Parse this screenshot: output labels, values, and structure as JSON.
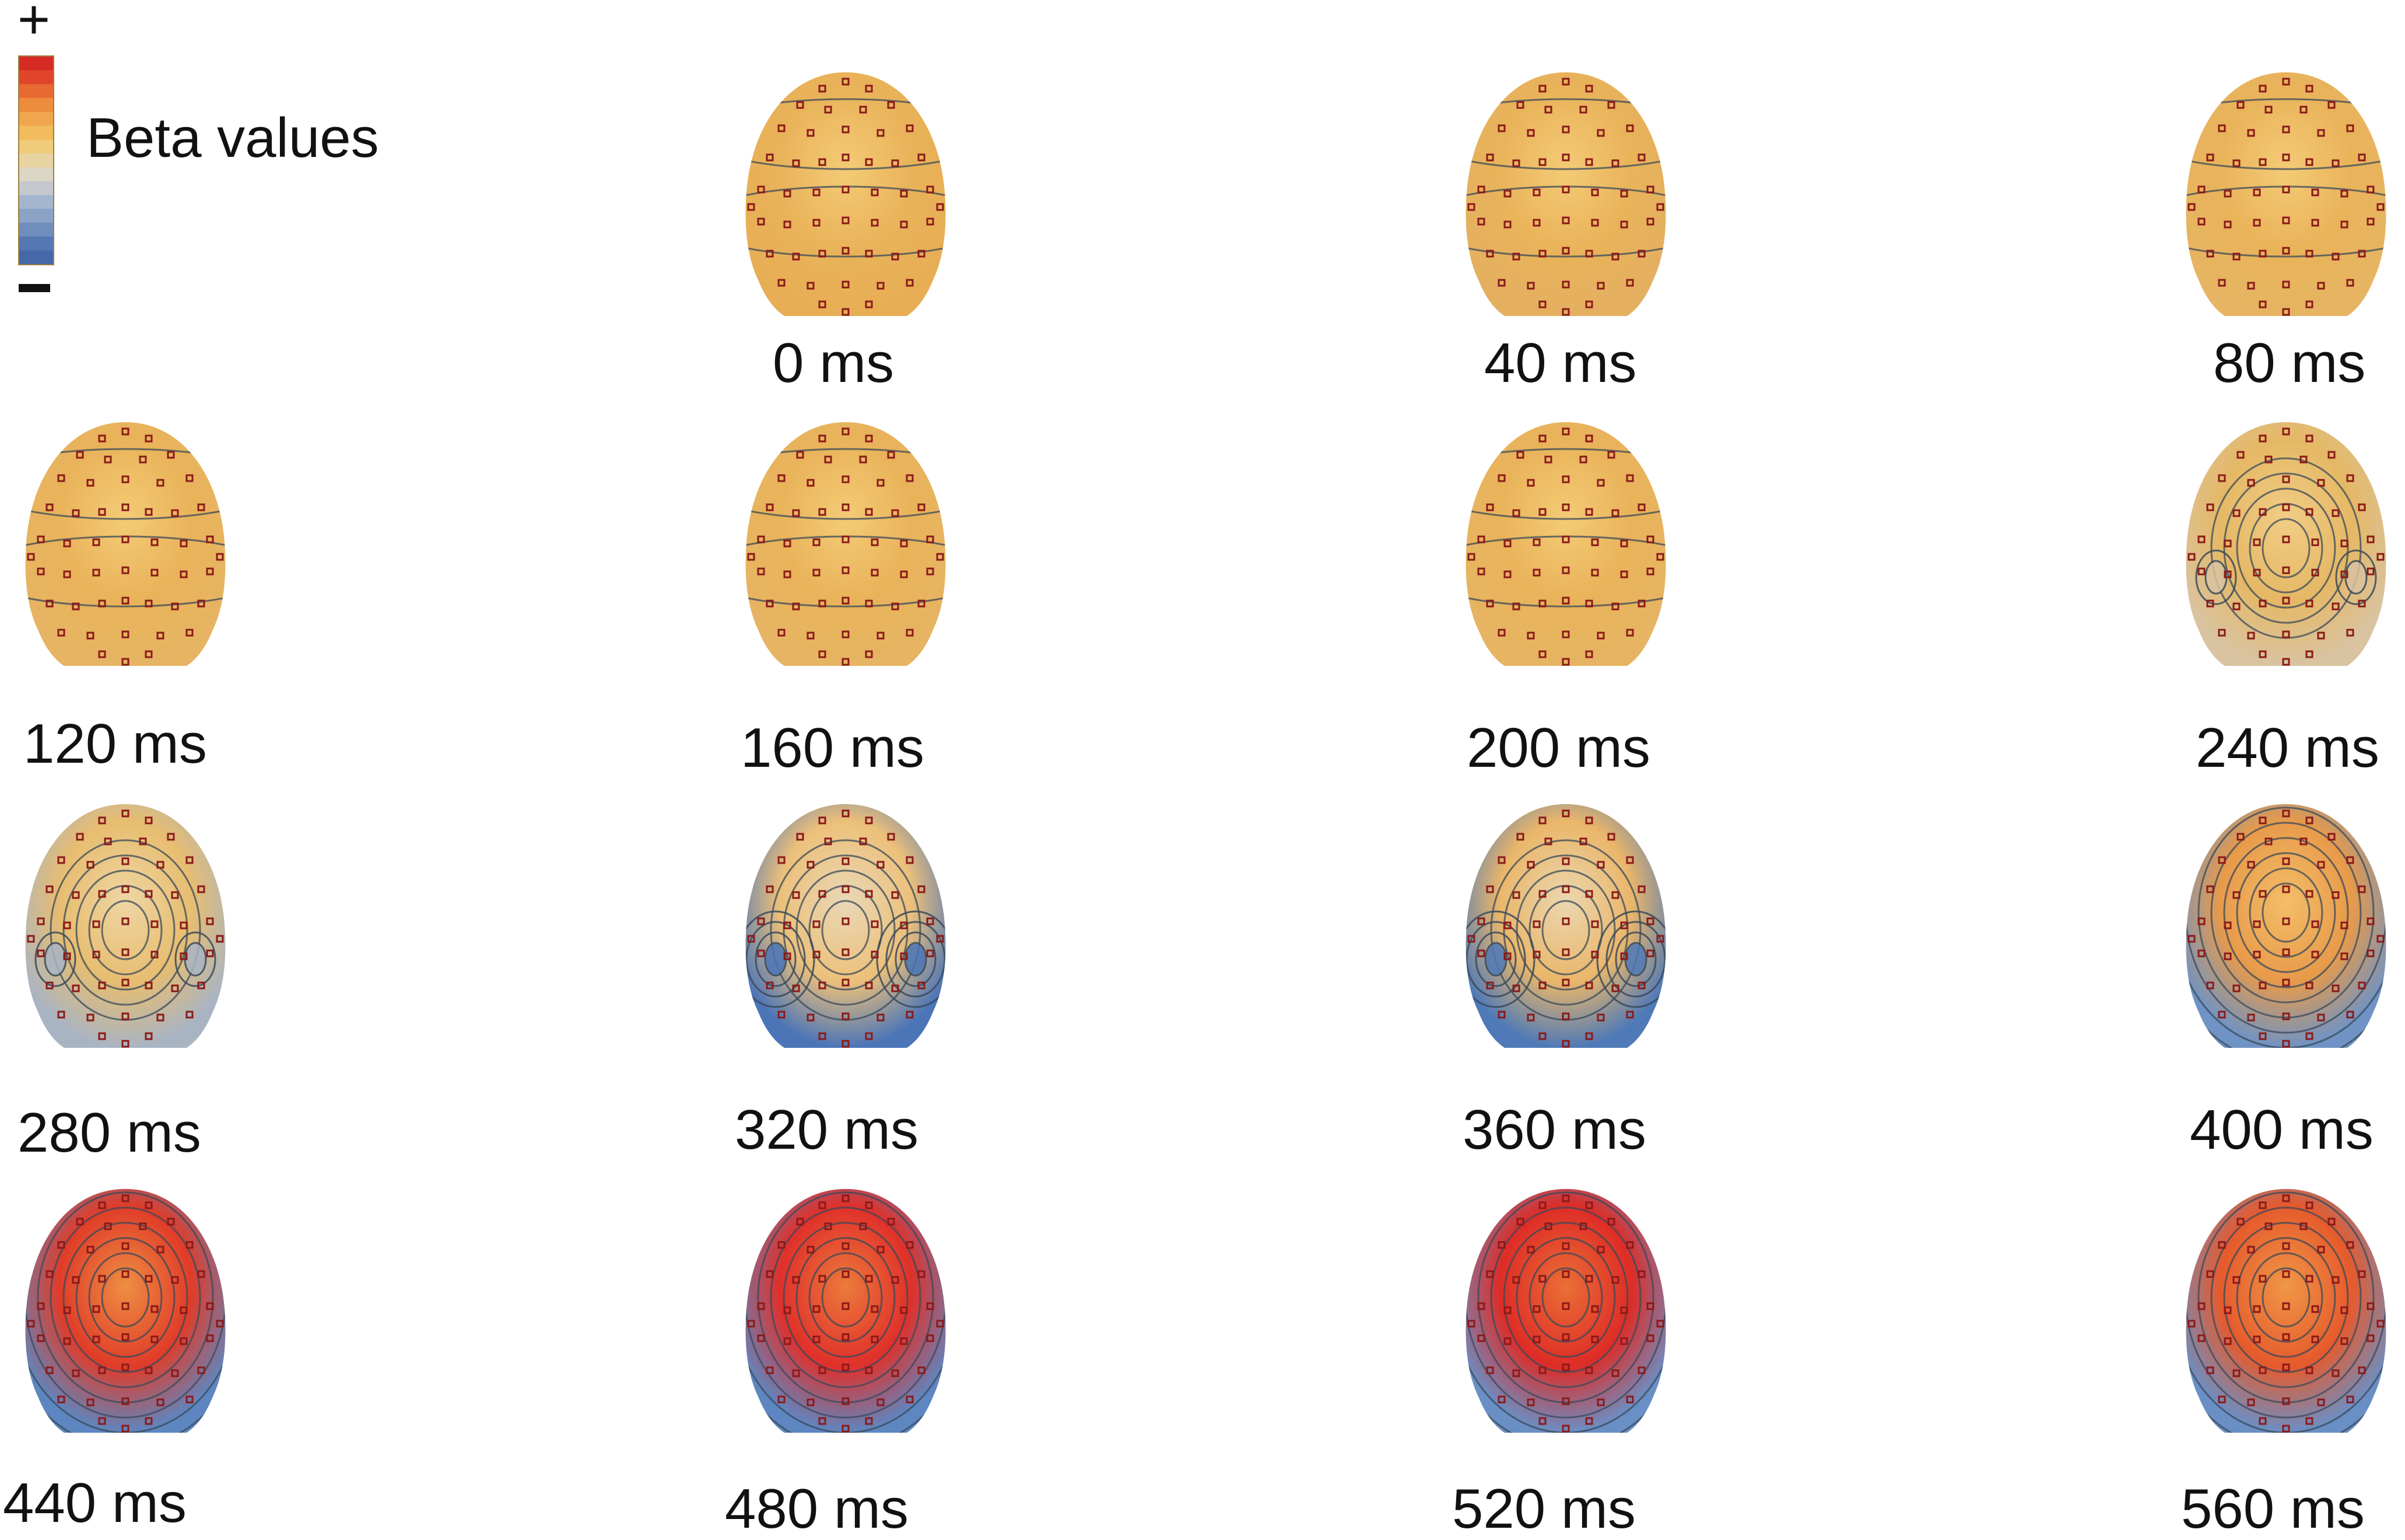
{
  "legend": {
    "plus": "+",
    "minus": "−",
    "label": "Beta values",
    "colors": [
      "#d62a25",
      "#e0452c",
      "#e86a33",
      "#ee8c3e",
      "#f0a64c",
      "#f1bb5e",
      "#f0cb7a",
      "#e8d4a0",
      "#dcd6c4",
      "#c5c9cf",
      "#a4b6cf",
      "#8aa3c7",
      "#6f8ebd",
      "#5577b2",
      "#4668a8"
    ]
  },
  "electrode_color": "#8b1a1a",
  "contour_color": "#3a4a5a",
  "maps": [
    {
      "label": "0 ms",
      "palette": [
        "#e9b35a",
        "#f4cb76",
        "#e7ae55"
      ]
    },
    {
      "label": "40 ms",
      "palette": [
        "#e9b35a",
        "#f4cb76",
        "#e4b060"
      ]
    },
    {
      "label": "80 ms",
      "palette": [
        "#e9b35a",
        "#f4cb76",
        "#e6b462"
      ]
    },
    {
      "label": "120 ms",
      "palette": [
        "#e9b35a",
        "#f4cb76",
        "#e6b462"
      ]
    },
    {
      "label": "160 ms",
      "palette": [
        "#e9b35a",
        "#f4cb76",
        "#e6b462"
      ]
    },
    {
      "label": "200 ms",
      "palette": [
        "#e9b35a",
        "#f4cb76",
        "#e6b462"
      ]
    },
    {
      "label": "240 ms",
      "palette": [
        "#e5b865",
        "#f1cd86",
        "#d9c3a0"
      ]
    },
    {
      "label": "280 ms",
      "palette": [
        "#e7bd70",
        "#efd6a4",
        "#a9b4c3"
      ]
    },
    {
      "label": "320 ms",
      "palette": [
        "#ecc07a",
        "#e9d8b7",
        "#4b75b7"
      ]
    },
    {
      "label": "360 ms",
      "palette": [
        "#eab66a",
        "#ebd7b0",
        "#4f7ab7"
      ]
    },
    {
      "label": "400 ms",
      "palette": [
        "#e79a4a",
        "#f4be68",
        "#6f93c4"
      ]
    },
    {
      "label": "440 ms",
      "palette": [
        "#e03c28",
        "#ee8f43",
        "#5d86c0"
      ]
    },
    {
      "label": "480 ms",
      "palette": [
        "#e0302a",
        "#ec7a3b",
        "#5e86c1"
      ]
    },
    {
      "label": "520 ms",
      "palette": [
        "#de2c26",
        "#ea6f36",
        "#6a8fc5"
      ]
    },
    {
      "label": "560 ms",
      "palette": [
        "#e65a2c",
        "#ef9747",
        "#6a8fc5"
      ]
    }
  ]
}
